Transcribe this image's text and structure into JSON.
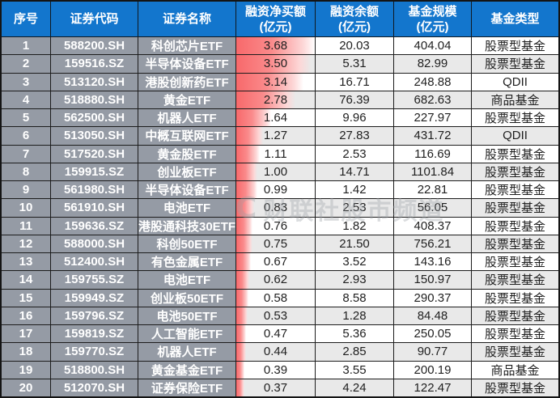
{
  "chart_data": {
    "type": "table",
    "columns": [
      "序号",
      "证券代码",
      "证券名称",
      "融资净买额(亿元)",
      "融资余额(亿元)",
      "基金规模(亿元)",
      "基金类型"
    ],
    "header_lines": [
      [
        "序号"
      ],
      [
        "证券代码"
      ],
      [
        "证券名称"
      ],
      [
        "融资净买额",
        "(亿元)"
      ],
      [
        "融资余额",
        "(亿元)"
      ],
      [
        "基金规模",
        "(亿元)"
      ],
      [
        "基金类型"
      ]
    ],
    "rows": [
      [
        "1",
        "588200.SH",
        "科创芯片ETF",
        "3.68",
        "20.03",
        "404.04",
        "股票型基金"
      ],
      [
        "2",
        "159516.SZ",
        "半导体设备ETF",
        "3.50",
        "5.31",
        "82.99",
        "股票型基金"
      ],
      [
        "3",
        "513120.SH",
        "港股创新药ETF",
        "3.14",
        "16.71",
        "248.88",
        "QDII"
      ],
      [
        "4",
        "518880.SH",
        "黄金ETF",
        "2.78",
        "76.39",
        "682.63",
        "商品基金"
      ],
      [
        "5",
        "562500.SH",
        "机器人ETF",
        "1.64",
        "9.96",
        "227.97",
        "股票型基金"
      ],
      [
        "6",
        "513050.SH",
        "中概互联网ETF",
        "1.27",
        "27.83",
        "431.72",
        "QDII"
      ],
      [
        "7",
        "517520.SH",
        "黄金股ETF",
        "1.11",
        "2.53",
        "116.69",
        "股票型基金"
      ],
      [
        "8",
        "159915.SZ",
        "创业板ETF",
        "1.00",
        "14.71",
        "1101.84",
        "股票型基金"
      ],
      [
        "9",
        "561980.SH",
        "半导体设备ETF",
        "0.99",
        "1.42",
        "22.81",
        "股票型基金"
      ],
      [
        "10",
        "561910.SH",
        "电池ETF",
        "0.83",
        "2.53",
        "56.05",
        "股票型基金"
      ],
      [
        "11",
        "159636.SZ",
        "港股通科技30ETF",
        "0.76",
        "1.82",
        "408.37",
        "股票型基金"
      ],
      [
        "12",
        "588000.SH",
        "科创50ETF",
        "0.75",
        "21.50",
        "756.21",
        "股票型基金"
      ],
      [
        "13",
        "512400.SH",
        "有色金属ETF",
        "0.67",
        "3.52",
        "143.16",
        "股票型基金"
      ],
      [
        "14",
        "159755.SZ",
        "电池ETF",
        "0.62",
        "2.93",
        "150.97",
        "股票型基金"
      ],
      [
        "15",
        "159949.SZ",
        "创业板50ETF",
        "0.58",
        "8.58",
        "290.37",
        "股票型基金"
      ],
      [
        "16",
        "159796.SZ",
        "电池50ETF",
        "0.53",
        "1.28",
        "84.48",
        "股票型基金"
      ],
      [
        "17",
        "159819.SZ",
        "人工智能ETF",
        "0.47",
        "5.36",
        "250.05",
        "股票型基金"
      ],
      [
        "18",
        "159770.SZ",
        "机器人ETF",
        "0.44",
        "2.85",
        "90.77",
        "股票型基金"
      ],
      [
        "19",
        "518800.SH",
        "黄金基金ETF",
        "0.39",
        "3.55",
        "200.19",
        "商品基金"
      ],
      [
        "20",
        "512070.SH",
        "证券保险ETF",
        "0.37",
        "4.24",
        "122.47",
        "股票型基金"
      ]
    ],
    "bar_column_index": 3,
    "bar_max": 3.68,
    "bar_color": "#f8696b",
    "layout": {
      "grid": "on",
      "alt_row_shading": "even rows shaded in value columns"
    }
  },
  "colors": {
    "header_bg": "#1376cd",
    "header_text": "#ffffff",
    "label_columns_bg": "#959ba5",
    "label_columns_text": "#ffffff",
    "bar_red": "#f8696b",
    "alt_row_bg": "#e9e9e9",
    "grid_line": "#1c1c1c",
    "value_text": "#1f1f1f"
  },
  "watermark": {
    "logo": "C",
    "text": "财联社股市频道"
  }
}
